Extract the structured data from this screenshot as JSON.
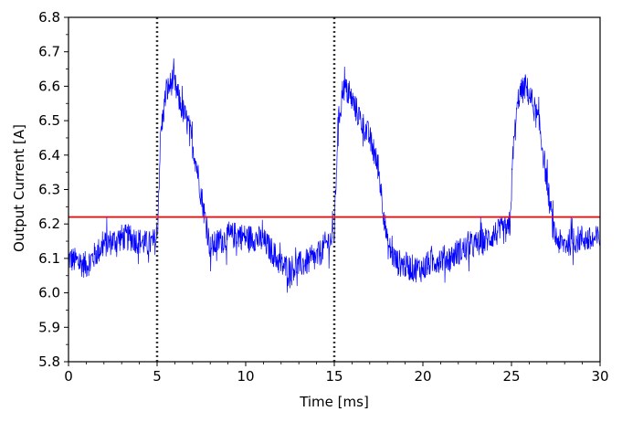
{
  "chart_data": {
    "type": "line",
    "title": "",
    "xlabel": "Time [ms]",
    "ylabel": "Output Current [A]",
    "xlim": [
      0,
      30
    ],
    "ylim": [
      5.8,
      6.8
    ],
    "xticks": [
      0,
      5,
      10,
      15,
      20,
      25,
      30
    ],
    "xtick_labels": [
      "0",
      "5",
      "10",
      "15",
      "20",
      "25",
      "30"
    ],
    "yticks": [
      5.8,
      5.9,
      6.0,
      6.1,
      6.2,
      6.3,
      6.4,
      6.5,
      6.6,
      6.7,
      6.8
    ],
    "ytick_labels": [
      "5.8",
      "5.9",
      "6.0",
      "6.1",
      "6.2",
      "6.3",
      "6.4",
      "6.5",
      "6.6",
      "6.7",
      "6.8"
    ],
    "grid": false,
    "series": [
      {
        "color": "#0000ff",
        "style": "noisy-line",
        "x": [
          0,
          0.5,
          1,
          1.5,
          2,
          2.5,
          3,
          3.5,
          4,
          4.5,
          4.9,
          5.0,
          5.2,
          5.5,
          5.9,
          6.3,
          6.8,
          7.2,
          7.6,
          8.0,
          8.5,
          9,
          9.5,
          10,
          10.5,
          11,
          11.5,
          12,
          12.5,
          13,
          13.5,
          14,
          14.5,
          14.9,
          15.0,
          15.2,
          15.5,
          16.0,
          16.5,
          17.0,
          17.5,
          18.0,
          18.5,
          19,
          19.5,
          20,
          20.5,
          21,
          21.5,
          22,
          22.5,
          23,
          23.5,
          24,
          24.5,
          24.9,
          25.1,
          25.4,
          25.8,
          26.2,
          26.6,
          27.0,
          27.4,
          27.8,
          28.5,
          29,
          29.5,
          30
        ],
        "y": [
          6.1,
          6.09,
          6.08,
          6.11,
          6.14,
          6.15,
          6.16,
          6.16,
          6.15,
          6.14,
          6.15,
          6.15,
          6.46,
          6.58,
          6.62,
          6.55,
          6.48,
          6.38,
          6.25,
          6.13,
          6.15,
          6.16,
          6.17,
          6.16,
          6.16,
          6.15,
          6.12,
          6.08,
          6.07,
          6.08,
          6.09,
          6.1,
          6.14,
          6.16,
          6.17,
          6.48,
          6.6,
          6.56,
          6.5,
          6.45,
          6.36,
          6.14,
          6.09,
          6.08,
          6.07,
          6.07,
          6.09,
          6.1,
          6.1,
          6.12,
          6.13,
          6.14,
          6.15,
          6.17,
          6.18,
          6.18,
          6.42,
          6.57,
          6.6,
          6.55,
          6.48,
          6.32,
          6.17,
          6.14,
          6.15,
          6.16,
          6.15,
          6.16
        ],
        "noise": 0.04
      },
      {
        "color": "#ff0000",
        "style": "solid",
        "x": [
          0,
          30
        ],
        "y": [
          6.22,
          6.22
        ]
      }
    ],
    "vlines": [
      {
        "x": 5,
        "color": "#333333",
        "style": "dotted"
      },
      {
        "x": 15,
        "color": "#333333",
        "style": "dotted"
      }
    ]
  }
}
